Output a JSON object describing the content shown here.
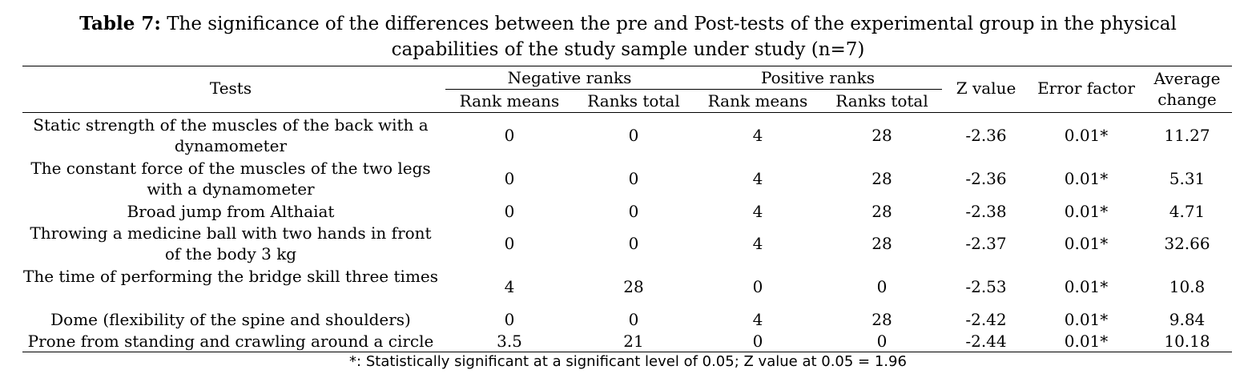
{
  "caption": {
    "label": "Table 7:",
    "line1": " The significance of the differences between the pre and Post-tests of the experimental group in the physical",
    "line2": "capabilities of the study sample under study (n=7)"
  },
  "headers": {
    "tests": "Tests",
    "negative": "Negative ranks",
    "positive": "Positive ranks",
    "neg_rank_means": "Rank means",
    "neg_ranks_total": "Ranks total",
    "pos_rank_means": "Rank means",
    "pos_ranks_total": "Ranks total",
    "z_value": "Z value",
    "error_factor": "Error factor",
    "average_change_1": "Average",
    "average_change_2": "change"
  },
  "rows": [
    {
      "test": "Static strength of the muscles of the back with a dynamometer",
      "neg_means": "0",
      "neg_total": "0",
      "pos_means": "4",
      "pos_total": "28",
      "z": "-2.36",
      "error": "0.01*",
      "avg": "11.27"
    },
    {
      "test": "The constant force of the muscles of the two legs with a dynamometer",
      "neg_means": "0",
      "neg_total": "0",
      "pos_means": "4",
      "pos_total": "28",
      "z": "-2.36",
      "error": "0.01*",
      "avg": "5.31"
    },
    {
      "test": "Broad jump from Althaiat",
      "neg_means": "0",
      "neg_total": "0",
      "pos_means": "4",
      "pos_total": "28",
      "z": "-2.38",
      "error": "0.01*",
      "avg": "4.71"
    },
    {
      "test": "Throwing a medicine ball with two hands in front of the body 3 kg",
      "neg_means": "0",
      "neg_total": "0",
      "pos_means": "4",
      "pos_total": "28",
      "z": "-2.37",
      "error": "0.01*",
      "avg": "32.66"
    },
    {
      "test": "The time of performing the bridge skill three times",
      "neg_means": "4",
      "neg_total": "28",
      "pos_means": "0",
      "pos_total": "0",
      "z": "-2.53",
      "error": "0.01*",
      "avg": "10.8"
    },
    {
      "test": "Dome (flexibility of the spine and shoulders)",
      "neg_means": "0",
      "neg_total": "0",
      "pos_means": "4",
      "pos_total": "28",
      "z": "-2.42",
      "error": "0.01*",
      "avg": "9.84"
    },
    {
      "test": "Prone from standing and crawling around a circle",
      "neg_means": "3.5",
      "neg_total": "21",
      "pos_means": "0",
      "pos_total": "0",
      "z": "-2.44",
      "error": "0.01*",
      "avg": "10.18"
    }
  ],
  "footnote": "*: Statistically significant at a significant level of 0.05; Z value at 0.05 = 1.96"
}
